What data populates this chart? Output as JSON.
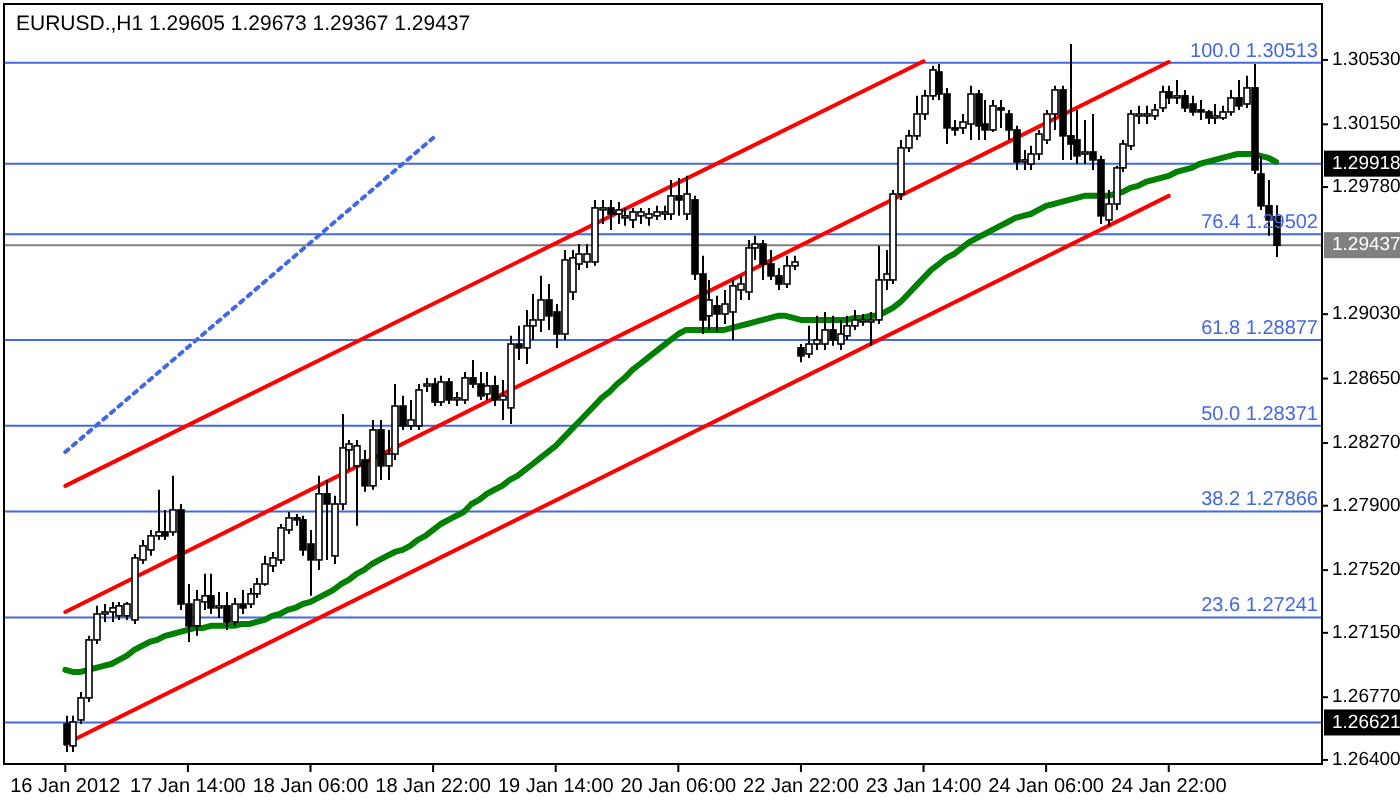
{
  "chart_data": {
    "type": "candlestick",
    "title": "EURUSD.,H1  1.29605 1.29673 1.29367 1.29437",
    "categories": [
      "16 Jan 2012",
      null,
      null,
      null,
      null,
      null,
      null,
      null,
      null,
      null,
      null,
      null,
      null,
      null,
      null,
      null,
      "17 Jan 14:00",
      null,
      null,
      null,
      null,
      null,
      null,
      null,
      null,
      null,
      null,
      null,
      null,
      null,
      null,
      null,
      "18 Jan 06:00",
      null,
      null,
      null,
      null,
      null,
      null,
      null,
      null,
      null,
      null,
      null,
      null,
      null,
      null,
      null,
      "18 Jan 22:00",
      null,
      null,
      null,
      null,
      null,
      null,
      null,
      null,
      null,
      null,
      null,
      null,
      null,
      null,
      null,
      "19 Jan 14:00",
      null,
      null,
      null,
      null,
      null,
      null,
      null,
      null,
      null,
      null,
      null,
      null,
      null,
      null,
      null,
      "20 Jan 06:00",
      null,
      null,
      null,
      null,
      null,
      null,
      null,
      null,
      null,
      null,
      null,
      null,
      null,
      null,
      null,
      "22 Jan 22:00",
      null,
      null,
      null,
      null,
      null,
      null,
      null,
      null,
      null,
      null,
      null,
      null,
      null,
      null,
      null,
      "23 Jan 14:00",
      null,
      null,
      null,
      null,
      null,
      null,
      null,
      null,
      null,
      null,
      null,
      null,
      null,
      null,
      null,
      "24 Jan 06:00",
      null,
      null,
      null,
      null,
      null,
      null,
      null,
      null,
      null,
      null,
      null,
      null,
      null,
      null,
      null,
      "24 Jan 22:00",
      null,
      null,
      null,
      null,
      null,
      null,
      null,
      null,
      null,
      null,
      null,
      null,
      null,
      null
    ],
    "ohlc": [
      [
        1.26612,
        1.2666,
        1.26447,
        1.26494
      ],
      [
        1.26483,
        1.2666,
        1.26447,
        1.26624
      ],
      [
        1.26636,
        1.26801,
        1.26612,
        1.26766
      ],
      [
        1.26766,
        1.27132,
        1.26742,
        1.27108
      ],
      [
        1.27108,
        1.27309,
        1.27084,
        1.27261
      ],
      [
        1.27261,
        1.2732,
        1.27214,
        1.27273
      ],
      [
        1.27273,
        1.27332,
        1.27214,
        1.27297
      ],
      [
        1.2725,
        1.27332,
        1.27226,
        1.27309
      ],
      [
        1.2725,
        1.27332,
        1.27226,
        1.2732
      ],
      [
        1.27226,
        1.27615,
        1.27202,
        1.27592
      ],
      [
        1.2758,
        1.27698,
        1.27556,
        1.27663
      ],
      [
        1.27639,
        1.27757,
        1.27604,
        1.27722
      ],
      [
        1.27722,
        1.27994,
        1.27698,
        1.27745
      ],
      [
        1.27745,
        1.27875,
        1.27698,
        1.27722
      ],
      [
        1.27745,
        1.28076,
        1.27722,
        1.27875
      ],
      [
        1.27875,
        1.2791,
        1.27285,
        1.2732
      ],
      [
        1.2732,
        1.27438,
        1.27096,
        1.27191
      ],
      [
        1.27191,
        1.27403,
        1.27132,
        1.27344
      ],
      [
        1.27332,
        1.27498,
        1.27285,
        1.27368
      ],
      [
        1.27368,
        1.27498,
        1.27261,
        1.27297
      ],
      [
        1.27297,
        1.27391,
        1.27238,
        1.27309
      ],
      [
        1.27309,
        1.27391,
        1.27167,
        1.27214
      ],
      [
        1.27214,
        1.27356,
        1.27191,
        1.2732
      ],
      [
        1.2732,
        1.27403,
        1.27261,
        1.27297
      ],
      [
        1.2732,
        1.27415,
        1.27297,
        1.2738
      ],
      [
        1.2738,
        1.27474,
        1.27356,
        1.27438
      ],
      [
        1.27438,
        1.27604,
        1.27427,
        1.27556
      ],
      [
        1.27545,
        1.27627,
        1.27509,
        1.27592
      ],
      [
        1.2758,
        1.27792,
        1.27556,
        1.27769
      ],
      [
        1.27757,
        1.27863,
        1.27733,
        1.27828
      ],
      [
        1.27828,
        1.27851,
        1.27781,
        1.27816
      ],
      [
        1.27816,
        1.2784,
        1.27604,
        1.27639
      ],
      [
        1.27674,
        1.27757,
        1.27368,
        1.2758
      ],
      [
        1.2758,
        1.28076,
        1.27521,
        1.2797
      ],
      [
        1.2797,
        1.28052,
        1.2758,
        1.2791
      ],
      [
        1.27604,
        1.27958,
        1.27556,
        1.2791
      ],
      [
        1.2791,
        1.28441,
        1.27875,
        1.28241
      ],
      [
        1.28229,
        1.28288,
        1.28111,
        1.28264
      ],
      [
        1.28135,
        1.28288,
        1.27781,
        1.28253
      ],
      [
        1.2817,
        1.28229,
        1.27982,
        1.28017
      ],
      [
        1.28017,
        1.28406,
        1.27994,
        1.28347
      ],
      [
        1.28347,
        1.28406,
        1.28052,
        1.28135
      ],
      [
        1.28135,
        1.28347,
        1.28052,
        1.28205
      ],
      [
        1.28205,
        1.28618,
        1.2817,
        1.28488
      ],
      [
        1.28488,
        1.28548,
        1.28347,
        1.28371
      ],
      [
        1.28371,
        1.28524,
        1.28347,
        1.28406
      ],
      [
        1.28371,
        1.28618,
        1.28347,
        1.28583
      ],
      [
        1.28607,
        1.28654,
        1.28571,
        1.28618
      ],
      [
        1.28618,
        1.28654,
        1.28488,
        1.28512
      ],
      [
        1.28512,
        1.28666,
        1.28488,
        1.2863
      ],
      [
        1.2863,
        1.28654,
        1.285,
        1.28524
      ],
      [
        1.28524,
        1.28571,
        1.28488,
        1.28536
      ],
      [
        1.28524,
        1.28689,
        1.285,
        1.28654
      ],
      [
        1.28654,
        1.2876,
        1.28595,
        1.28618
      ],
      [
        1.28618,
        1.28689,
        1.28524,
        1.28548
      ],
      [
        1.28559,
        1.28689,
        1.28524,
        1.28607
      ],
      [
        1.28607,
        1.28666,
        1.28488,
        1.28524
      ],
      [
        1.28524,
        1.28642,
        1.28406,
        1.28548
      ],
      [
        1.28477,
        1.28902,
        1.28382,
        1.28854
      ],
      [
        1.28854,
        1.28961,
        1.2876,
        1.28831
      ],
      [
        1.28831,
        1.29055,
        1.28736,
        1.28961
      ],
      [
        1.28961,
        1.29149,
        1.28878,
        1.28996
      ],
      [
        1.28996,
        1.29256,
        1.28925,
        1.29114
      ],
      [
        1.29114,
        1.29208,
        1.28937,
        1.2902
      ],
      [
        1.29043,
        1.2909,
        1.28831,
        1.28913
      ],
      [
        1.28913,
        1.29409,
        1.28878,
        1.2935
      ],
      [
        1.29161,
        1.29409,
        1.29114,
        1.29362
      ],
      [
        1.29326,
        1.29444,
        1.29291,
        1.29385
      ],
      [
        1.29338,
        1.29444,
        1.29303,
        1.29385
      ],
      [
        1.29338,
        1.29704,
        1.29315,
        1.29657
      ],
      [
        1.29657,
        1.29704,
        1.29562,
        1.29657
      ],
      [
        1.29657,
        1.29704,
        1.29527,
        1.29621
      ],
      [
        1.29621,
        1.29692,
        1.29562,
        1.29645
      ],
      [
        1.2961,
        1.29657,
        1.29551,
        1.2961
      ],
      [
        1.29586,
        1.29657,
        1.29539,
        1.29633
      ],
      [
        1.2961,
        1.29657,
        1.29562,
        1.29633
      ],
      [
        1.29598,
        1.29657,
        1.29551,
        1.29621
      ],
      [
        1.2961,
        1.29669,
        1.29586,
        1.29633
      ],
      [
        1.29621,
        1.29669,
        1.29586,
        1.29633
      ],
      [
        1.29621,
        1.29822,
        1.29586,
        1.29728
      ],
      [
        1.29728,
        1.29834,
        1.2961,
        1.29704
      ],
      [
        1.29621,
        1.29846,
        1.29586,
        1.29739
      ],
      [
        1.29704,
        1.29728,
        1.29232,
        1.29267
      ],
      [
        1.29267,
        1.29374,
        1.28913,
        1.28996
      ],
      [
        1.2902,
        1.29232,
        1.28937,
        1.29114
      ],
      [
        1.29079,
        1.29138,
        1.28925,
        1.29031
      ],
      [
        1.29031,
        1.29173,
        1.28972,
        1.2909
      ],
      [
        1.29043,
        1.29232,
        1.28878,
        1.29197
      ],
      [
        1.29173,
        1.29256,
        1.29114,
        1.29208
      ],
      [
        1.29161,
        1.29468,
        1.29114,
        1.29421
      ],
      [
        1.29421,
        1.29492,
        1.2935,
        1.29444
      ],
      [
        1.29444,
        1.29468,
        1.29232,
        1.29326
      ],
      [
        1.29326,
        1.29409,
        1.29232,
        1.29256
      ],
      [
        1.29256,
        1.29303,
        1.29173,
        1.29208
      ],
      [
        1.29208,
        1.29374,
        1.29185,
        1.29315
      ],
      [
        1.29315,
        1.29374,
        1.29291,
        1.29338
      ],
      [
        1.28831,
        1.28854,
        1.28746,
        1.28784
      ],
      [
        1.28795,
        1.28961,
        1.28772,
        1.28854
      ],
      [
        1.28854,
        1.2902,
        1.28819,
        1.28878
      ],
      [
        1.28854,
        1.29043,
        1.28819,
        1.28937
      ],
      [
        1.28937,
        1.2902,
        1.28843,
        1.28878
      ],
      [
        1.28854,
        1.28996,
        1.28819,
        1.28913
      ],
      [
        1.28902,
        1.2902,
        1.28878,
        1.28961
      ],
      [
        1.28961,
        1.29055,
        1.28937,
        1.28996
      ],
      [
        1.28996,
        1.29031,
        1.28961,
        1.28996
      ],
      [
        1.28996,
        1.29043,
        1.28843,
        1.28996
      ],
      [
        1.28996,
        1.29433,
        1.28972,
        1.29232
      ],
      [
        1.29232,
        1.29409,
        1.29173,
        1.29267
      ],
      [
        1.29232,
        1.29763,
        1.29208,
        1.29739
      ],
      [
        1.29739,
        1.30058,
        1.29704,
        1.30011
      ],
      [
        1.30011,
        1.30117,
        1.29987,
        1.30082
      ],
      [
        1.30082,
        1.30318,
        1.30058,
        1.30211
      ],
      [
        1.30211,
        1.30353,
        1.30176,
        1.30318
      ],
      [
        1.30318,
        1.30495,
        1.30294,
        1.30471
      ],
      [
        1.30459,
        1.30506,
        1.30294,
        1.30329
      ],
      [
        1.30329,
        1.30365,
        1.30034,
        1.30129
      ],
      [
        1.30129,
        1.30176,
        1.30082,
        1.30117
      ],
      [
        1.30129,
        1.30211,
        1.30093,
        1.30164
      ],
      [
        1.30152,
        1.30377,
        1.30058,
        1.30329
      ],
      [
        1.30329,
        1.30353,
        1.30058,
        1.30141
      ],
      [
        1.30152,
        1.30294,
        1.30058,
        1.30117
      ],
      [
        1.30117,
        1.30294,
        1.30105,
        1.30259
      ],
      [
        1.30247,
        1.30294,
        1.30129,
        1.30235
      ],
      [
        1.30211,
        1.30235,
        1.30058,
        1.30117
      ],
      [
        1.30117,
        1.30141,
        1.29881,
        1.29928
      ],
      [
        1.2994,
        1.29999,
        1.29881,
        1.2994
      ],
      [
        1.29916,
        1.30023,
        1.29881,
        1.29975
      ],
      [
        1.29975,
        1.30117,
        1.2994,
        1.30093
      ],
      [
        1.30058,
        1.30235,
        1.30034,
        1.30211
      ],
      [
        1.30211,
        1.30377,
        1.30117,
        1.30353
      ],
      [
        1.30353,
        1.30377,
        1.2994,
        1.30082
      ],
      [
        1.30082,
        1.30624,
        1.2994,
        1.30034
      ],
      [
        1.30058,
        1.30235,
        1.29916,
        1.29964
      ],
      [
        1.29975,
        1.30176,
        1.29916,
        1.29987
      ],
      [
        1.29987,
        1.30211,
        1.29881,
        1.2994
      ],
      [
        1.2994,
        1.29964,
        1.29562,
        1.2961
      ],
      [
        1.29586,
        1.29763,
        1.29551,
        1.2968
      ],
      [
        1.2968,
        1.29905,
        1.29645,
        1.29893
      ],
      [
        1.29893,
        1.30058,
        1.29869,
        1.30034
      ],
      [
        1.30023,
        1.30235,
        1.29999,
        1.30211
      ],
      [
        1.302,
        1.30259,
        1.30152,
        1.30211
      ],
      [
        1.30211,
        1.30259,
        1.30152,
        1.30211
      ],
      [
        1.302,
        1.3027,
        1.30176,
        1.30235
      ],
      [
        1.30247,
        1.30377,
        1.30223,
        1.30341
      ],
      [
        1.30341,
        1.30377,
        1.3027,
        1.30306
      ],
      [
        1.30318,
        1.30412,
        1.3027,
        1.30318
      ],
      [
        1.30318,
        1.30353,
        1.30223,
        1.30247
      ],
      [
        1.3027,
        1.30318,
        1.302,
        1.30223
      ],
      [
        1.30235,
        1.30294,
        1.30176,
        1.30223
      ],
      [
        1.30223,
        1.30235,
        1.30152,
        1.30188
      ],
      [
        1.30188,
        1.3027,
        1.30152,
        1.302
      ],
      [
        1.30188,
        1.30259,
        1.30176,
        1.30223
      ],
      [
        1.30223,
        1.30353,
        1.302,
        1.30306
      ],
      [
        1.30306,
        1.30412,
        1.30235,
        1.30259
      ],
      [
        1.3027,
        1.30436,
        1.30247,
        1.30365
      ],
      [
        1.30365,
        1.30506,
        1.29857,
        1.29881
      ],
      [
        1.29857,
        1.29964,
        1.29645,
        1.29669
      ],
      [
        1.29669,
        1.29822,
        1.29492,
        1.29586
      ],
      [
        1.29605,
        1.29673,
        1.29367,
        1.29437
      ]
    ],
    "series": [
      {
        "type": "line",
        "color": "#008000",
        "values": [
          1.26931,
          1.26919,
          1.26919,
          1.26931,
          1.26943,
          1.26955,
          1.26966,
          1.2699,
          1.27014,
          1.27049,
          1.27073,
          1.27096,
          1.27108,
          1.27132,
          1.27143,
          1.27155,
          1.27167,
          1.27179,
          1.27179,
          1.27191,
          1.27191,
          1.27191,
          1.27191,
          1.27202,
          1.27202,
          1.27214,
          1.27226,
          1.2725,
          1.27261,
          1.27285,
          1.27297,
          1.2732,
          1.27332,
          1.27356,
          1.2738,
          1.27403,
          1.27438,
          1.27462,
          1.27498,
          1.27521,
          1.27556,
          1.2758,
          1.27604,
          1.27627,
          1.27639,
          1.27663,
          1.27698,
          1.27722,
          1.27757,
          1.27792,
          1.27816,
          1.2784,
          1.27863,
          1.2791,
          1.27934,
          1.2797,
          1.27994,
          1.28017,
          1.28052,
          1.28076,
          1.28111,
          1.28146,
          1.28182,
          1.28217,
          1.28253,
          1.283,
          1.28347,
          1.28394,
          1.28441,
          1.28488,
          1.28536,
          1.28571,
          1.28618,
          1.28654,
          1.28701,
          1.28736,
          1.28772,
          1.28807,
          1.28843,
          1.28878,
          1.28913,
          1.28937,
          1.28937,
          1.28937,
          1.28937,
          1.28937,
          1.28937,
          1.28949,
          1.28961,
          1.28972,
          1.28984,
          1.28996,
          1.29008,
          1.2902,
          1.2902,
          1.29008,
          1.28996,
          1.28996,
          1.28996,
          1.28996,
          1.28996,
          1.28996,
          1.28996,
          1.29008,
          1.29008,
          1.2902,
          1.2902,
          1.29043,
          1.29067,
          1.29102,
          1.29149,
          1.29197,
          1.29244,
          1.29291,
          1.29326,
          1.29362,
          1.29385,
          1.29421,
          1.29456,
          1.2948,
          1.29503,
          1.29527,
          1.29551,
          1.29574,
          1.29598,
          1.2961,
          1.29621,
          1.29645,
          1.29669,
          1.2968,
          1.29692,
          1.29704,
          1.29716,
          1.29728,
          1.29728,
          1.29728,
          1.29728,
          1.29739,
          1.29751,
          1.29775,
          1.29787,
          1.2981,
          1.29822,
          1.29834,
          1.29846,
          1.29869,
          1.29881,
          1.29893,
          1.29916,
          1.29928,
          1.2994,
          1.29952,
          1.29964,
          1.29975,
          1.29975,
          1.29975,
          1.29964,
          1.29952,
          1.29928
        ]
      },
      {
        "type": "line",
        "color": "#ff0000",
        "x": [
          "16 Jan 2012",
          "23 Jan 14:00"
        ],
        "values": [
          1.28017,
          1.30522
        ]
      },
      {
        "type": "line",
        "color": "#ff0000",
        "x": [
          "16 Jan 2012",
          "24 Jan 22:00"
        ],
        "values": [
          1.27273,
          1.30518
        ]
      },
      {
        "type": "line",
        "color": "#ff0000",
        "x": [
          "16 Jan 2012",
          "24 Jan 22:00"
        ],
        "values": [
          1.26494,
          1.29728
        ]
      },
      {
        "type": "line",
        "color": "#4169e1",
        "line_style": "dotted",
        "x": [
          "16 Jan 2012",
          "18 Jan 22:00"
        ],
        "values": [
          1.28217,
          1.3007
        ]
      }
    ],
    "ylim": [
      1.26376,
      1.3086
    ],
    "y2lim": [
      1.26376,
      1.3086
    ],
    "y2ticks": [
      {
        "value": 1.29918,
        "label": "1.29918"
      },
      {
        "value": 1.29437,
        "label": "1.29437"
      },
      {
        "value": 1.26621,
        "label": "1.26621"
      }
    ],
    "yticks": [
      {
        "value": 1.3053,
        "label": "1.30530"
      },
      {
        "value": 1.3015,
        "label": "1.30150"
      },
      {
        "value": 1.2978,
        "label": "1.29780"
      },
      {
        "value": 1.2903,
        "label": "1.29030"
      },
      {
        "value": 1.2865,
        "label": "1.28650"
      },
      {
        "value": 1.2827,
        "label": "1.28270"
      },
      {
        "value": 1.279,
        "label": "1.27900"
      },
      {
        "value": 1.2752,
        "label": "1.27520"
      },
      {
        "value": 1.2715,
        "label": "1.27150"
      },
      {
        "value": 1.2677,
        "label": "1.26770"
      },
      {
        "value": 1.264,
        "label": "1.26400"
      }
    ],
    "ref_lines": [
      {
        "axis": "y",
        "value": 1.30513,
        "label": "100.0 1.30513",
        "color": "#4169e1"
      },
      {
        "axis": "y",
        "value": 1.29502,
        "label": "76.4 1.29502",
        "color": "#4169e1"
      },
      {
        "axis": "y",
        "value": 1.28877,
        "label": "61.8 1.28877",
        "color": "#4169e1"
      },
      {
        "axis": "y",
        "value": 1.28371,
        "label": "50.0 1.28371",
        "color": "#4169e1"
      },
      {
        "axis": "y",
        "value": 1.27866,
        "label": "38.2 1.27866",
        "color": "#4169e1"
      },
      {
        "axis": "y",
        "value": 1.27241,
        "label": "23.6 1.27241",
        "color": "#4169e1"
      },
      {
        "axis": "y",
        "value": 1.29918,
        "color": "#4169e1"
      },
      {
        "axis": "y",
        "value": 1.26621,
        "color": "#4169e1"
      },
      {
        "axis": "y",
        "value": 1.29437,
        "color": "#808080"
      }
    ]
  }
}
